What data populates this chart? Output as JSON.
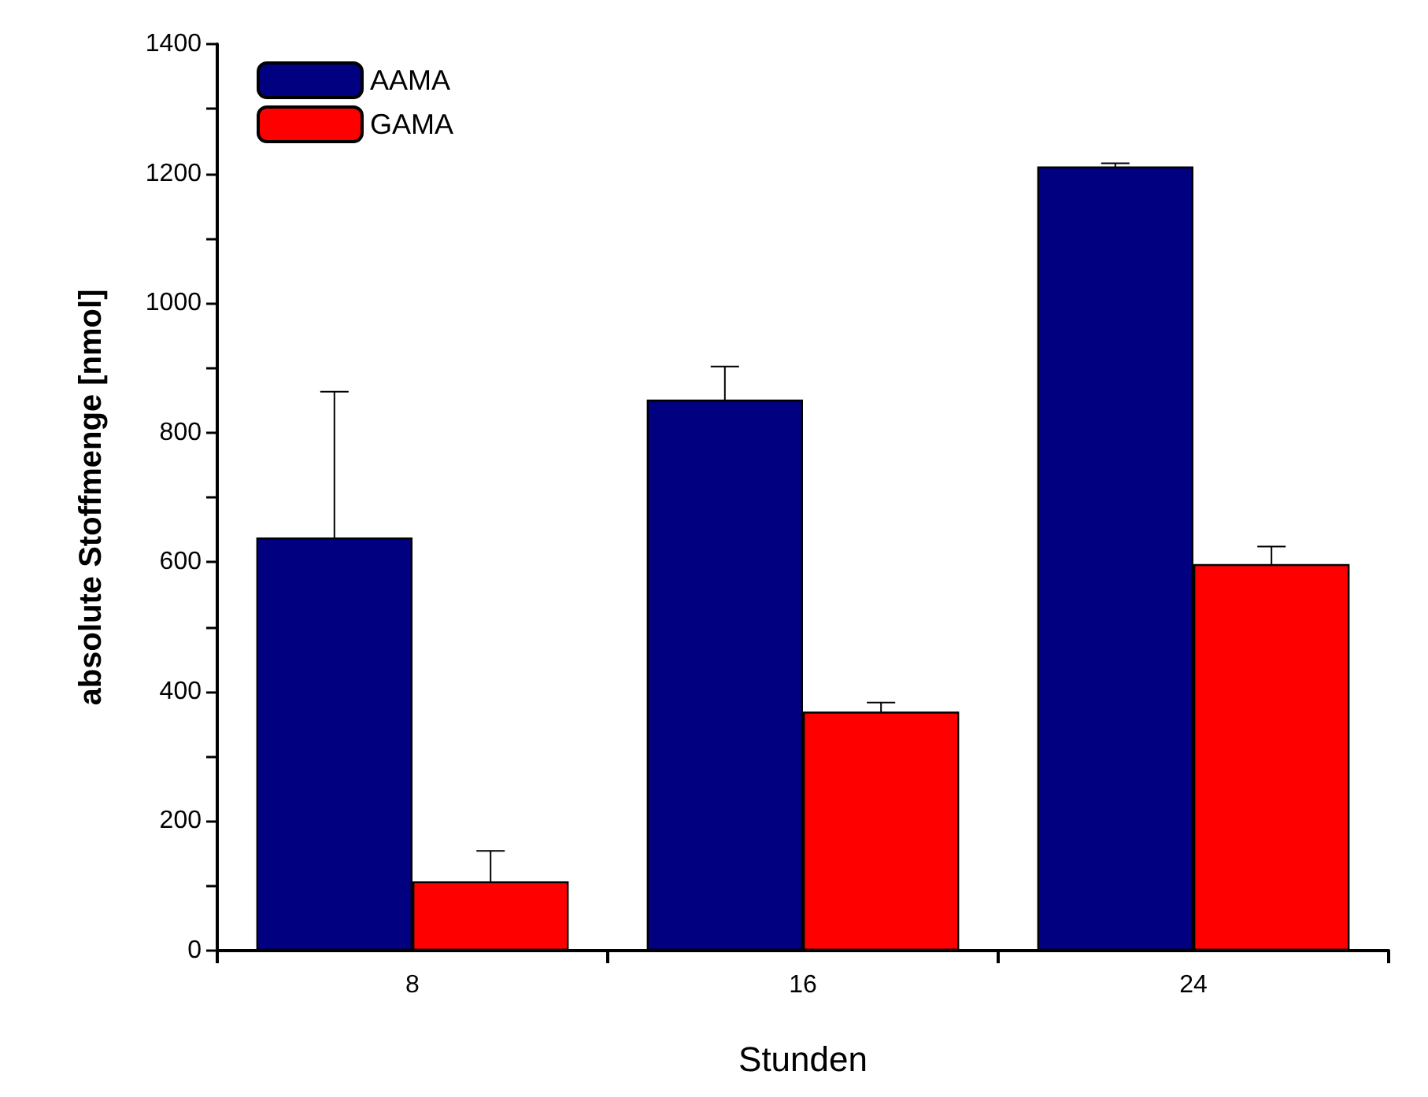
{
  "chart_data": {
    "type": "bar",
    "xlabel": "Stunden",
    "ylabel": "absolute Stoffmenge [nmol]",
    "categories": [
      "8",
      "16",
      "24"
    ],
    "series": [
      {
        "name": "AAMA",
        "color": "#000080",
        "values": [
          638,
          851,
          1211
        ],
        "errors": [
          225,
          51,
          5
        ]
      },
      {
        "name": "GAMA",
        "color": "#ff0000",
        "values": [
          107,
          369,
          597
        ],
        "errors": [
          47,
          14,
          27
        ]
      }
    ],
    "ylim": [
      0,
      1400
    ],
    "yticks": [
      0,
      {
        "value": 100,
        "label": null
      },
      200,
      {
        "value": 300,
        "label": null
      },
      400,
      {
        "value": 500,
        "label": null
      },
      600,
      {
        "value": 700,
        "label": null
      },
      800,
      {
        "value": 900,
        "label": null
      },
      1000,
      {
        "value": 1100,
        "label": null
      },
      1200,
      {
        "value": 1300,
        "label": null
      },
      1400
    ],
    "grid": false,
    "legend": "top left"
  }
}
